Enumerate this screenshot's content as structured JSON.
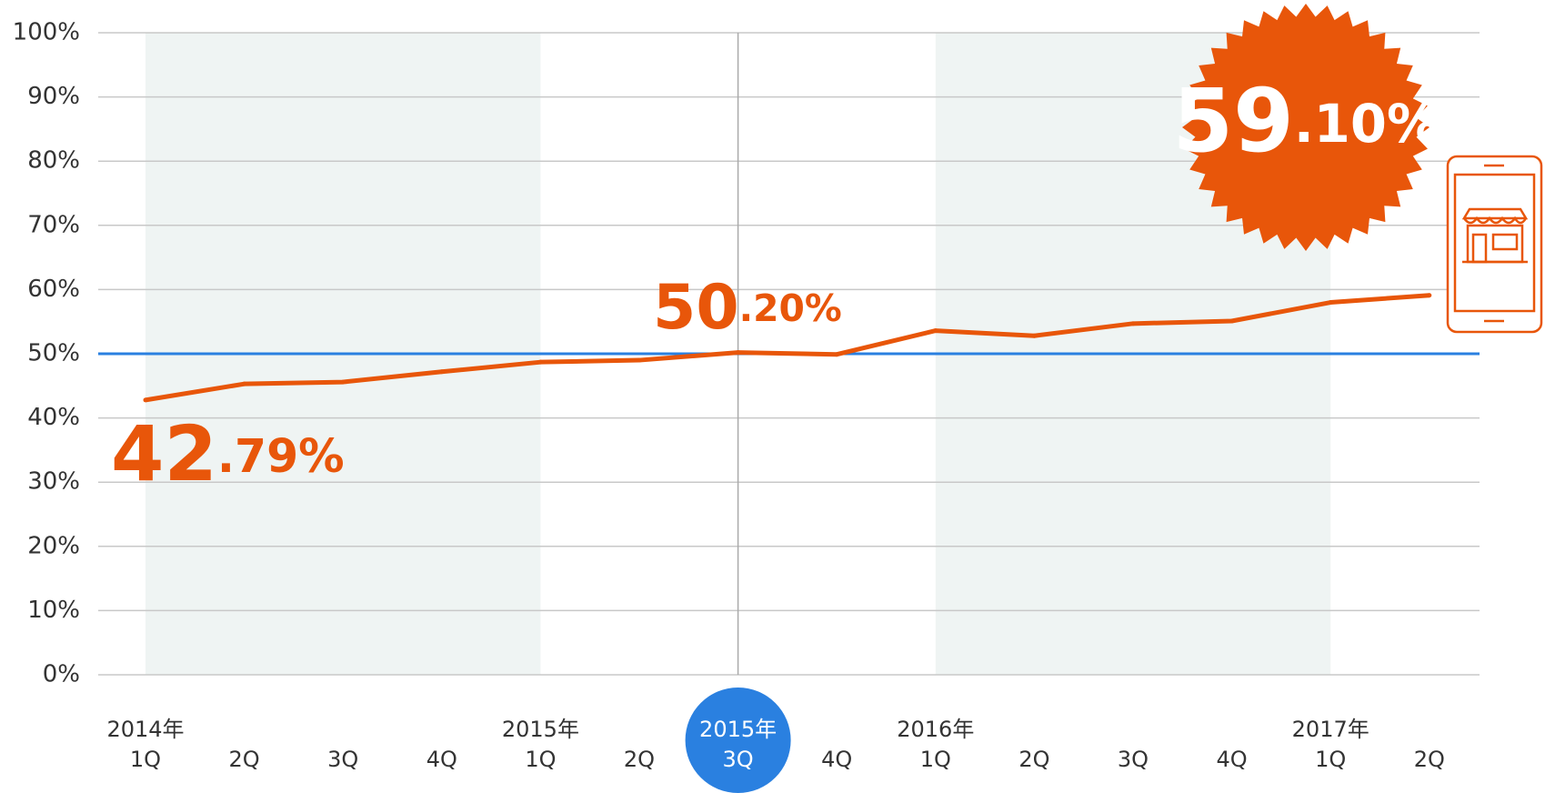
{
  "chart_data": {
    "type": "line",
    "categories": [
      "2014年\n1Q",
      "2Q",
      "3Q",
      "4Q",
      "2015年\n1Q",
      "2Q",
      "2015年\n3Q",
      "4Q",
      "2016年\n1Q",
      "2Q",
      "3Q",
      "4Q",
      "2017年\n1Q",
      "2Q"
    ],
    "series": [
      {
        "color": "#e8560a",
        "values": [
          42.79,
          45.3,
          45.6,
          47.2,
          48.7,
          49.0,
          50.2,
          49.9,
          53.6,
          52.8,
          54.7,
          55.1,
          58.0,
          59.1
        ],
        "value_labels": [
          "42.79%",
          null,
          null,
          null,
          null,
          null,
          "50.20%",
          null,
          null,
          null,
          null,
          null,
          null,
          "59.10%"
        ]
      }
    ],
    "ylim": [
      0,
      100
    ],
    "yticks": [
      {
        "value": 0,
        "label": "0%"
      },
      {
        "value": 10,
        "label": "10%"
      },
      {
        "value": 20,
        "label": "20%"
      },
      {
        "value": 30,
        "label": "30%"
      },
      {
        "value": 40,
        "label": "40%"
      },
      {
        "value": 50,
        "label": "50%"
      },
      {
        "value": 60,
        "label": "60%"
      },
      {
        "value": 70,
        "label": "70%"
      },
      {
        "value": 80,
        "label": "80%"
      },
      {
        "value": 90,
        "label": "90%"
      },
      {
        "value": 100,
        "label": "100%"
      }
    ],
    "reference_line": {
      "value": 50,
      "color": "#2a80e0"
    },
    "grid": true
  }
}
